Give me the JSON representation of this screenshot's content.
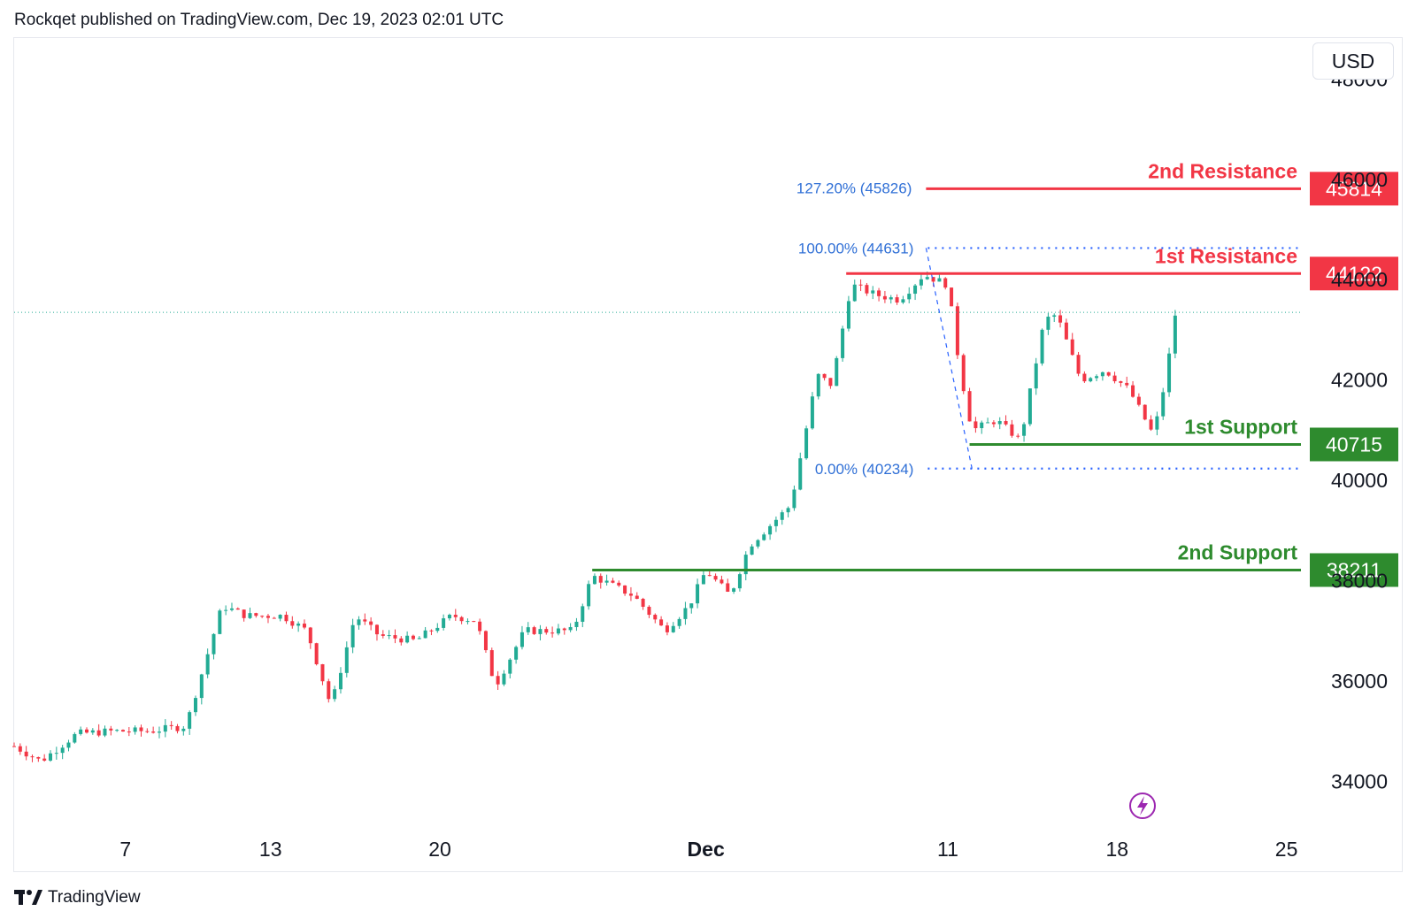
{
  "header": {
    "publish_info": "Rockqet published on TradingView.com, Dec 19, 2023 02:01 UTC"
  },
  "currency": "USD",
  "footer": {
    "brand": "TradingView"
  },
  "colors": {
    "up": "#22ab94",
    "down": "#f23645",
    "resistance": "#f23645",
    "support": "#2e8b2e",
    "fib": "#2962ff",
    "fib_text": "#2f6fd6",
    "axis_text": "#131722",
    "lightning": "#9c27b0"
  },
  "chart_data": {
    "type": "candlestick",
    "title": "",
    "xlabel": "",
    "ylabel": "",
    "ylim": [
      33000,
      48800
    ],
    "grid": false,
    "y_ticks": [
      34000,
      36000,
      38000,
      40000,
      42000,
      44000,
      46000,
      48000
    ],
    "y_tick_labels": [
      "34000",
      "36000",
      "38000",
      "40000",
      "42000",
      "44000",
      "46000",
      "48000"
    ],
    "x_ticks": [
      {
        "label": "7",
        "day": 7
      },
      {
        "label": "13",
        "day": 13
      },
      {
        "label": "20",
        "day": 20
      },
      {
        "label": "Dec",
        "day": 31,
        "bold": true
      },
      {
        "label": "11",
        "day": 41
      },
      {
        "label": "18",
        "day": 48
      },
      {
        "label": "25",
        "day": 55
      }
    ],
    "x_range_days": [
      2.4,
      55.6
    ],
    "price_path": [
      [
        2.4,
        34700
      ],
      [
        3.5,
        34400
      ],
      [
        5.0,
        34950
      ],
      [
        6.5,
        35000
      ],
      [
        8.0,
        35000
      ],
      [
        9.5,
        35100
      ],
      [
        11.0,
        37500
      ],
      [
        12.0,
        37300
      ],
      [
        13.5,
        37300
      ],
      [
        14.5,
        37000
      ],
      [
        15.5,
        35500
      ],
      [
        16.5,
        37300
      ],
      [
        17.5,
        36900
      ],
      [
        19.0,
        36800
      ],
      [
        20.5,
        37300
      ],
      [
        21.5,
        37200
      ],
      [
        22.3,
        35900
      ],
      [
        23.5,
        37000
      ],
      [
        25.5,
        37000
      ],
      [
        26.3,
        38100
      ],
      [
        28.0,
        37700
      ],
      [
        29.3,
        37000
      ],
      [
        30.3,
        37500
      ],
      [
        31.0,
        38200
      ],
      [
        32.0,
        37700
      ],
      [
        32.8,
        38700
      ],
      [
        34.5,
        39500
      ],
      [
        35.6,
        42100
      ],
      [
        36.2,
        41900
      ],
      [
        37.0,
        43900
      ],
      [
        38.0,
        43700
      ],
      [
        39.0,
        43600
      ],
      [
        40.0,
        44100
      ],
      [
        41.0,
        43900
      ],
      [
        41.5,
        42200
      ],
      [
        42.0,
        41000
      ],
      [
        43.0,
        41200
      ],
      [
        44.0,
        40800
      ],
      [
        45.0,
        43200
      ],
      [
        45.5,
        43300
      ],
      [
        46.5,
        42000
      ],
      [
        47.5,
        42200
      ],
      [
        48.5,
        41800
      ],
      [
        49.5,
        40900
      ],
      [
        50.0,
        42000
      ],
      [
        50.4,
        43300
      ]
    ],
    "current_price_line": 43350,
    "levels": [
      {
        "name": "2nd Resistance",
        "value": 45814,
        "label": "45814",
        "kind": "resistance",
        "day_start": 40.1
      },
      {
        "name": "1st Resistance",
        "value": 44122,
        "label": "44122",
        "kind": "resistance",
        "day_start": 36.8
      },
      {
        "name": "1st Support",
        "value": 40715,
        "label": "40715",
        "kind": "support",
        "day_start": 41.9
      },
      {
        "name": "2nd Support",
        "value": 38211,
        "label": "38211",
        "kind": "support",
        "day_start": 26.3
      }
    ],
    "fibonacci": [
      {
        "label": "127.20% (45826)",
        "value": 45826
      },
      {
        "label": "100.00% (44631)",
        "value": 44631
      },
      {
        "label": "0.00% (40234)",
        "value": 40234
      }
    ],
    "fib_swing": {
      "high_day": 40.1,
      "high": 44631,
      "low_day": 42.0,
      "low": 40234
    }
  }
}
